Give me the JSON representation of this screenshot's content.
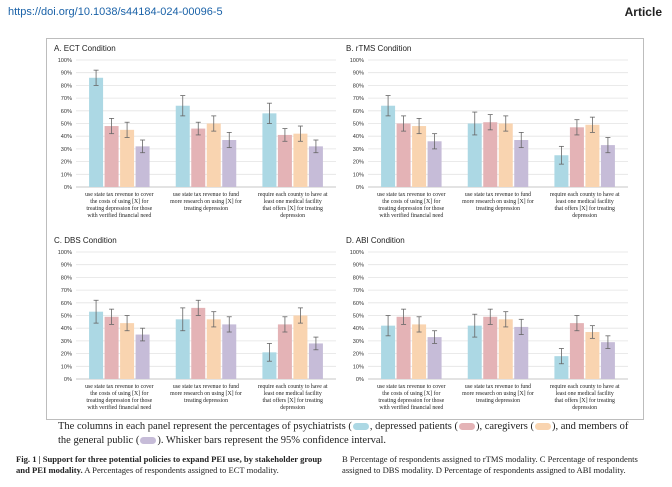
{
  "header": {
    "doi": "https://doi.org/10.1038/s44184-024-00096-5",
    "section": "Article"
  },
  "colors": {
    "psychiatrists": "#acd8e4",
    "depressed_patients": "#e4b3b6",
    "caregivers": "#f9d4b0",
    "general_public": "#c6bcd8"
  },
  "chart_data": [
    {
      "type": "bar",
      "title": "A. ECT Condition",
      "categories": [
        "use state tax revenue to cover the costs of using [X] for treating depression for those with verified financial need",
        "use state tax revenue to fund more research on using [X] for treating depression",
        "require each county to have at least one medical facility that offers [X] for treating depression"
      ],
      "series": [
        {
          "values": [
            86,
            64,
            58
          ],
          "ci": [
            6,
            8,
            8
          ]
        },
        {
          "values": [
            48,
            46,
            41
          ],
          "ci": [
            6,
            5,
            5
          ]
        },
        {
          "values": [
            45,
            50,
            42
          ],
          "ci": [
            6,
            6,
            6
          ]
        },
        {
          "values": [
            32,
            37,
            32
          ],
          "ci": [
            5,
            6,
            5
          ]
        }
      ],
      "ylim": [
        0,
        100
      ],
      "yticks": [
        "0%",
        "10%",
        "20%",
        "30%",
        "40%",
        "50%",
        "60%",
        "70%",
        "80%",
        "90%",
        "100%"
      ],
      "grid": true
    },
    {
      "type": "bar",
      "title": "B. rTMS Condition",
      "categories": [
        "use state tax revenue to cover the costs of using [X] for treating depression for those with verified financial need",
        "use state tax revenue to fund more research on using [X] for treating depression",
        "require each county to have at least one medical facility that offers [X] for treating depression"
      ],
      "series": [
        {
          "values": [
            64,
            50,
            25
          ],
          "ci": [
            8,
            9,
            7
          ]
        },
        {
          "values": [
            50,
            51,
            47
          ],
          "ci": [
            6,
            6,
            6
          ]
        },
        {
          "values": [
            48,
            50,
            49
          ],
          "ci": [
            6,
            6,
            6
          ]
        },
        {
          "values": [
            36,
            37,
            33
          ],
          "ci": [
            6,
            6,
            6
          ]
        }
      ],
      "ylim": [
        0,
        100
      ],
      "yticks": [
        "0%",
        "10%",
        "20%",
        "30%",
        "40%",
        "50%",
        "60%",
        "70%",
        "80%",
        "90%",
        "100%"
      ],
      "grid": true
    },
    {
      "type": "bar",
      "title": "C. DBS Condition",
      "categories": [
        "use state tax revenue to cover the costs of using [X] for treating depression for those with verified financial need",
        "use state tax revenue to fund more research on using [X] for treating depression",
        "require each county to have at least one medical facility that offers [X] for treating depression"
      ],
      "series": [
        {
          "values": [
            53,
            47,
            21
          ],
          "ci": [
            9,
            9,
            7
          ]
        },
        {
          "values": [
            49,
            56,
            43
          ],
          "ci": [
            6,
            6,
            6
          ]
        },
        {
          "values": [
            44,
            47,
            50
          ],
          "ci": [
            6,
            6,
            6
          ]
        },
        {
          "values": [
            35,
            43,
            28
          ],
          "ci": [
            5,
            6,
            5
          ]
        }
      ],
      "ylim": [
        0,
        100
      ],
      "yticks": [
        "0%",
        "10%",
        "20%",
        "30%",
        "40%",
        "50%",
        "60%",
        "70%",
        "80%",
        "90%",
        "100%"
      ],
      "grid": true
    },
    {
      "type": "bar",
      "title": "D. ABI Condition",
      "categories": [
        "use state tax revenue to cover the costs of using [X] for treating depression for those with verified financial need",
        "use state tax revenue to fund more research on using [X] for treating depression",
        "require each county to have at least one medical facility that offers [X] for treating depression"
      ],
      "series": [
        {
          "values": [
            42,
            42,
            18
          ],
          "ci": [
            8,
            9,
            6
          ]
        },
        {
          "values": [
            49,
            49,
            44
          ],
          "ci": [
            6,
            6,
            6
          ]
        },
        {
          "values": [
            43,
            47,
            37
          ],
          "ci": [
            6,
            6,
            5
          ]
        },
        {
          "values": [
            33,
            41,
            29
          ],
          "ci": [
            5,
            6,
            5
          ]
        }
      ],
      "ylim": [
        0,
        100
      ],
      "yticks": [
        "0%",
        "10%",
        "20%",
        "30%",
        "40%",
        "50%",
        "60%",
        "70%",
        "80%",
        "90%",
        "100%"
      ],
      "grid": true
    }
  ],
  "legend_caption": {
    "part1": "The columns in each panel represent the percentages of psychiatrists (",
    "part2": ", depressed patients (",
    "part3": "), caregivers (",
    "part4": "), and members of the general public (",
    "part5": "). Whisker bars represent the 95% confidence interval."
  },
  "fig_caption": {
    "label": "Fig. 1 | Support for three potential policies to expand PEI use, by stakeholder group and PEI modality.",
    "left_rest": " A Percentages of respondents assigned to ECT modality.",
    "right": "B Percentage of respondents assigned to rTMS modality. C Percentage of respondents assigned to DBS modality. D Percentage of respondents assigned to ABI modality."
  }
}
